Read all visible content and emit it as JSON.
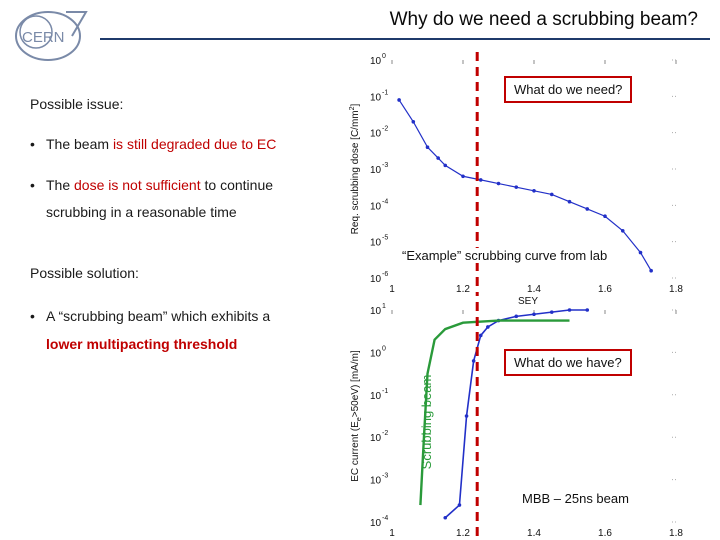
{
  "slide": {
    "title": "Why do we need a scrubbing beam?",
    "logo_text": "CERN",
    "possible_issue": {
      "heading": "Possible issue:",
      "bullet1": {
        "pre": "The beam ",
        "red": "is still degraded due to EC",
        "post": ""
      },
      "bullet2": {
        "pre": "The ",
        "red": "dose is not sufficient",
        "post": " to continue",
        "line2": "scrubbing in a reasonable time"
      }
    },
    "possible_solution": {
      "heading": "Possible solution:",
      "bullet1": {
        "line1": "A “scrubbing beam” which exhibits  a",
        "line2": "lower multipacting threshold"
      }
    },
    "bullet_symbol": "•",
    "callouts": {
      "what_need": "What do we need?",
      "what_have": "What do we have?",
      "example_caption": "“Example” scrubbing curve from lab",
      "mbb": "MBB – 25ns beam",
      "scrubbing_beam": "Scrubbing beam"
    },
    "colors": {
      "red": "#c00000",
      "navy": "#1f3a6b",
      "blue": "#2230c8",
      "green": "#2a9a3a"
    }
  },
  "chart_data": [
    {
      "type": "line",
      "ylabel": "Req. scrubbing dose [C/mm",
      "ylabel_sup": "2",
      "ylabel_end": "]",
      "xlabel": "SEY",
      "x_ticks": [
        "1",
        "1.2",
        "1.4",
        "1.6",
        "1.8"
      ],
      "y_ticks": [
        "10",
        "10",
        "10",
        "10",
        "10",
        "10",
        "10"
      ],
      "y_tick_exps": [
        "0",
        "-1",
        "-2",
        "-3",
        "-4",
        "-5",
        "-6"
      ],
      "y_scale": "log",
      "xlim": [
        1,
        1.8
      ],
      "ylim_exp": [
        -6,
        0
      ],
      "series": [
        {
          "color": "#2230c8",
          "x": [
            1.02,
            1.06,
            1.1,
            1.13,
            1.15,
            1.2,
            1.25,
            1.3,
            1.35,
            1.4,
            1.45,
            1.5,
            1.55,
            1.6,
            1.65,
            1.7,
            1.73
          ],
          "y_exp": [
            -1.1,
            -1.7,
            -2.4,
            -2.7,
            -2.9,
            -3.2,
            -3.3,
            -3.4,
            -3.5,
            -3.6,
            -3.7,
            -3.9,
            -4.1,
            -4.3,
            -4.7,
            -5.3,
            -5.8
          ]
        }
      ],
      "marker_x": 1.24
    },
    {
      "type": "line",
      "ylabel": "EC current (E",
      "ylabel_sub": "e",
      "ylabel_end": ">50eV) [mA/m]",
      "x_ticks": [
        "1",
        "1.2",
        "1.4",
        "1.6",
        "1.8"
      ],
      "y_ticks": [
        "10",
        "10",
        "10",
        "10",
        "10",
        "10"
      ],
      "y_tick_exps": [
        "1",
        "0",
        "-1",
        "-2",
        "-3",
        "-4"
      ],
      "y_scale": "log",
      "xlim": [
        1,
        1.8
      ],
      "ylim_exp": [
        -4,
        1
      ],
      "series": [
        {
          "color": "#2230c8",
          "x": [
            1.15,
            1.19,
            1.21,
            1.23,
            1.25,
            1.27,
            1.3,
            1.35,
            1.4,
            1.45,
            1.5,
            1.55
          ],
          "y_exp": [
            -3.9,
            -3.6,
            -1.5,
            -0.2,
            0.4,
            0.6,
            0.75,
            0.85,
            0.9,
            0.95,
            1.0,
            1.0
          ]
        },
        {
          "color": "#2a9a3a",
          "x": [
            1.08,
            1.09,
            1.1,
            1.12,
            1.15,
            1.2,
            1.3,
            1.4,
            1.5
          ],
          "y_exp": [
            -3.6,
            -2.0,
            -0.5,
            0.3,
            0.55,
            0.7,
            0.75,
            0.75,
            0.75
          ]
        }
      ],
      "marker_x": 1.24
    }
  ]
}
